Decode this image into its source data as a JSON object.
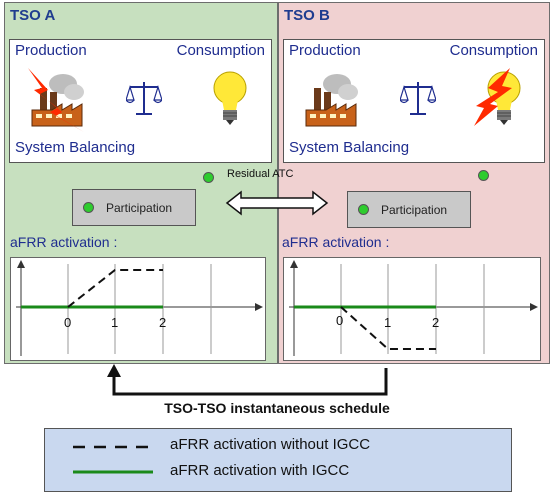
{
  "tso_a": {
    "title": "TSO A",
    "production": "Production",
    "consumption": "Consumption",
    "balancing": "System Balancing",
    "participation": "Participation",
    "afrr_title": "aFRR activation :",
    "ticks": [
      "0",
      "1",
      "2"
    ]
  },
  "tso_b": {
    "title": "TSO B",
    "production": "Production",
    "consumption": "Consumption",
    "balancing": "System Balancing",
    "participation": "Participation",
    "afrr_title": "aFRR activation :",
    "ticks": [
      "0",
      "1",
      "2"
    ]
  },
  "residual_atc": "Residual ATC",
  "schedule_label": "TSO-TSO instantaneous schedule",
  "legend": {
    "dashed": "aFRR activation without IGCC",
    "solid": "aFRR activation with IGCC"
  },
  "colors": {
    "tso_a_bg": "#c7e0bf",
    "tso_b_bg": "#f0d1d1",
    "title_blue": "#1f2d8f",
    "participation_dot": "#2ecc2e",
    "igcc_line": "#1a8a1a",
    "legend_bg": "#c9d8ef"
  },
  "icons": [
    "factory-icon",
    "lightning-icon",
    "scale-icon",
    "lightbulb-icon",
    "arrow-icon"
  ]
}
